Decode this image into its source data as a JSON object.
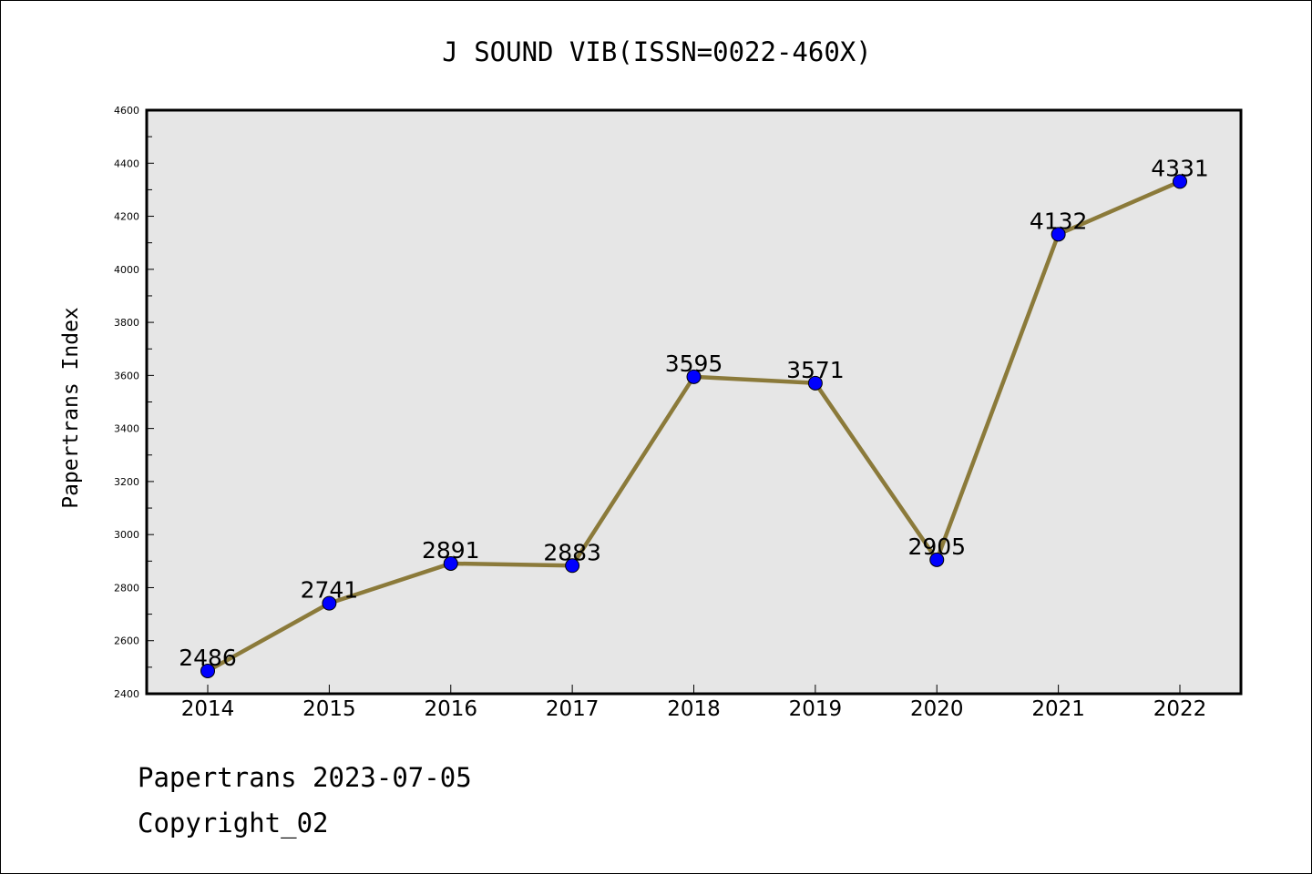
{
  "chart_data": {
    "type": "line",
    "title": "J SOUND VIB(ISSN=0022-460X)",
    "xlabel": "",
    "ylabel": "Papertrans Index",
    "categories": [
      "2014",
      "2015",
      "2016",
      "2017",
      "2018",
      "2019",
      "2020",
      "2021",
      "2022"
    ],
    "values": [
      2486,
      2741,
      2891,
      2883,
      3595,
      3571,
      2905,
      4132,
      4331
    ],
    "data_labels": [
      "2486",
      "2741",
      "2891",
      "2883",
      "3595",
      "3571",
      "2905",
      "4132",
      "4331"
    ],
    "ylim": [
      2400,
      4600
    ],
    "yticks": [
      "2400",
      "2600",
      "2800",
      "3000",
      "3200",
      "3400",
      "3600",
      "3800",
      "4000",
      "4200",
      "4400",
      "4600"
    ],
    "grid": false,
    "colors": {
      "line": "#8b7a3a",
      "marker": "#0000ff",
      "plot_background": "#e6e6e6"
    }
  },
  "footer": {
    "date_text": "Papertrans 2023-07-05",
    "copyright_text": "Copyright_02"
  }
}
